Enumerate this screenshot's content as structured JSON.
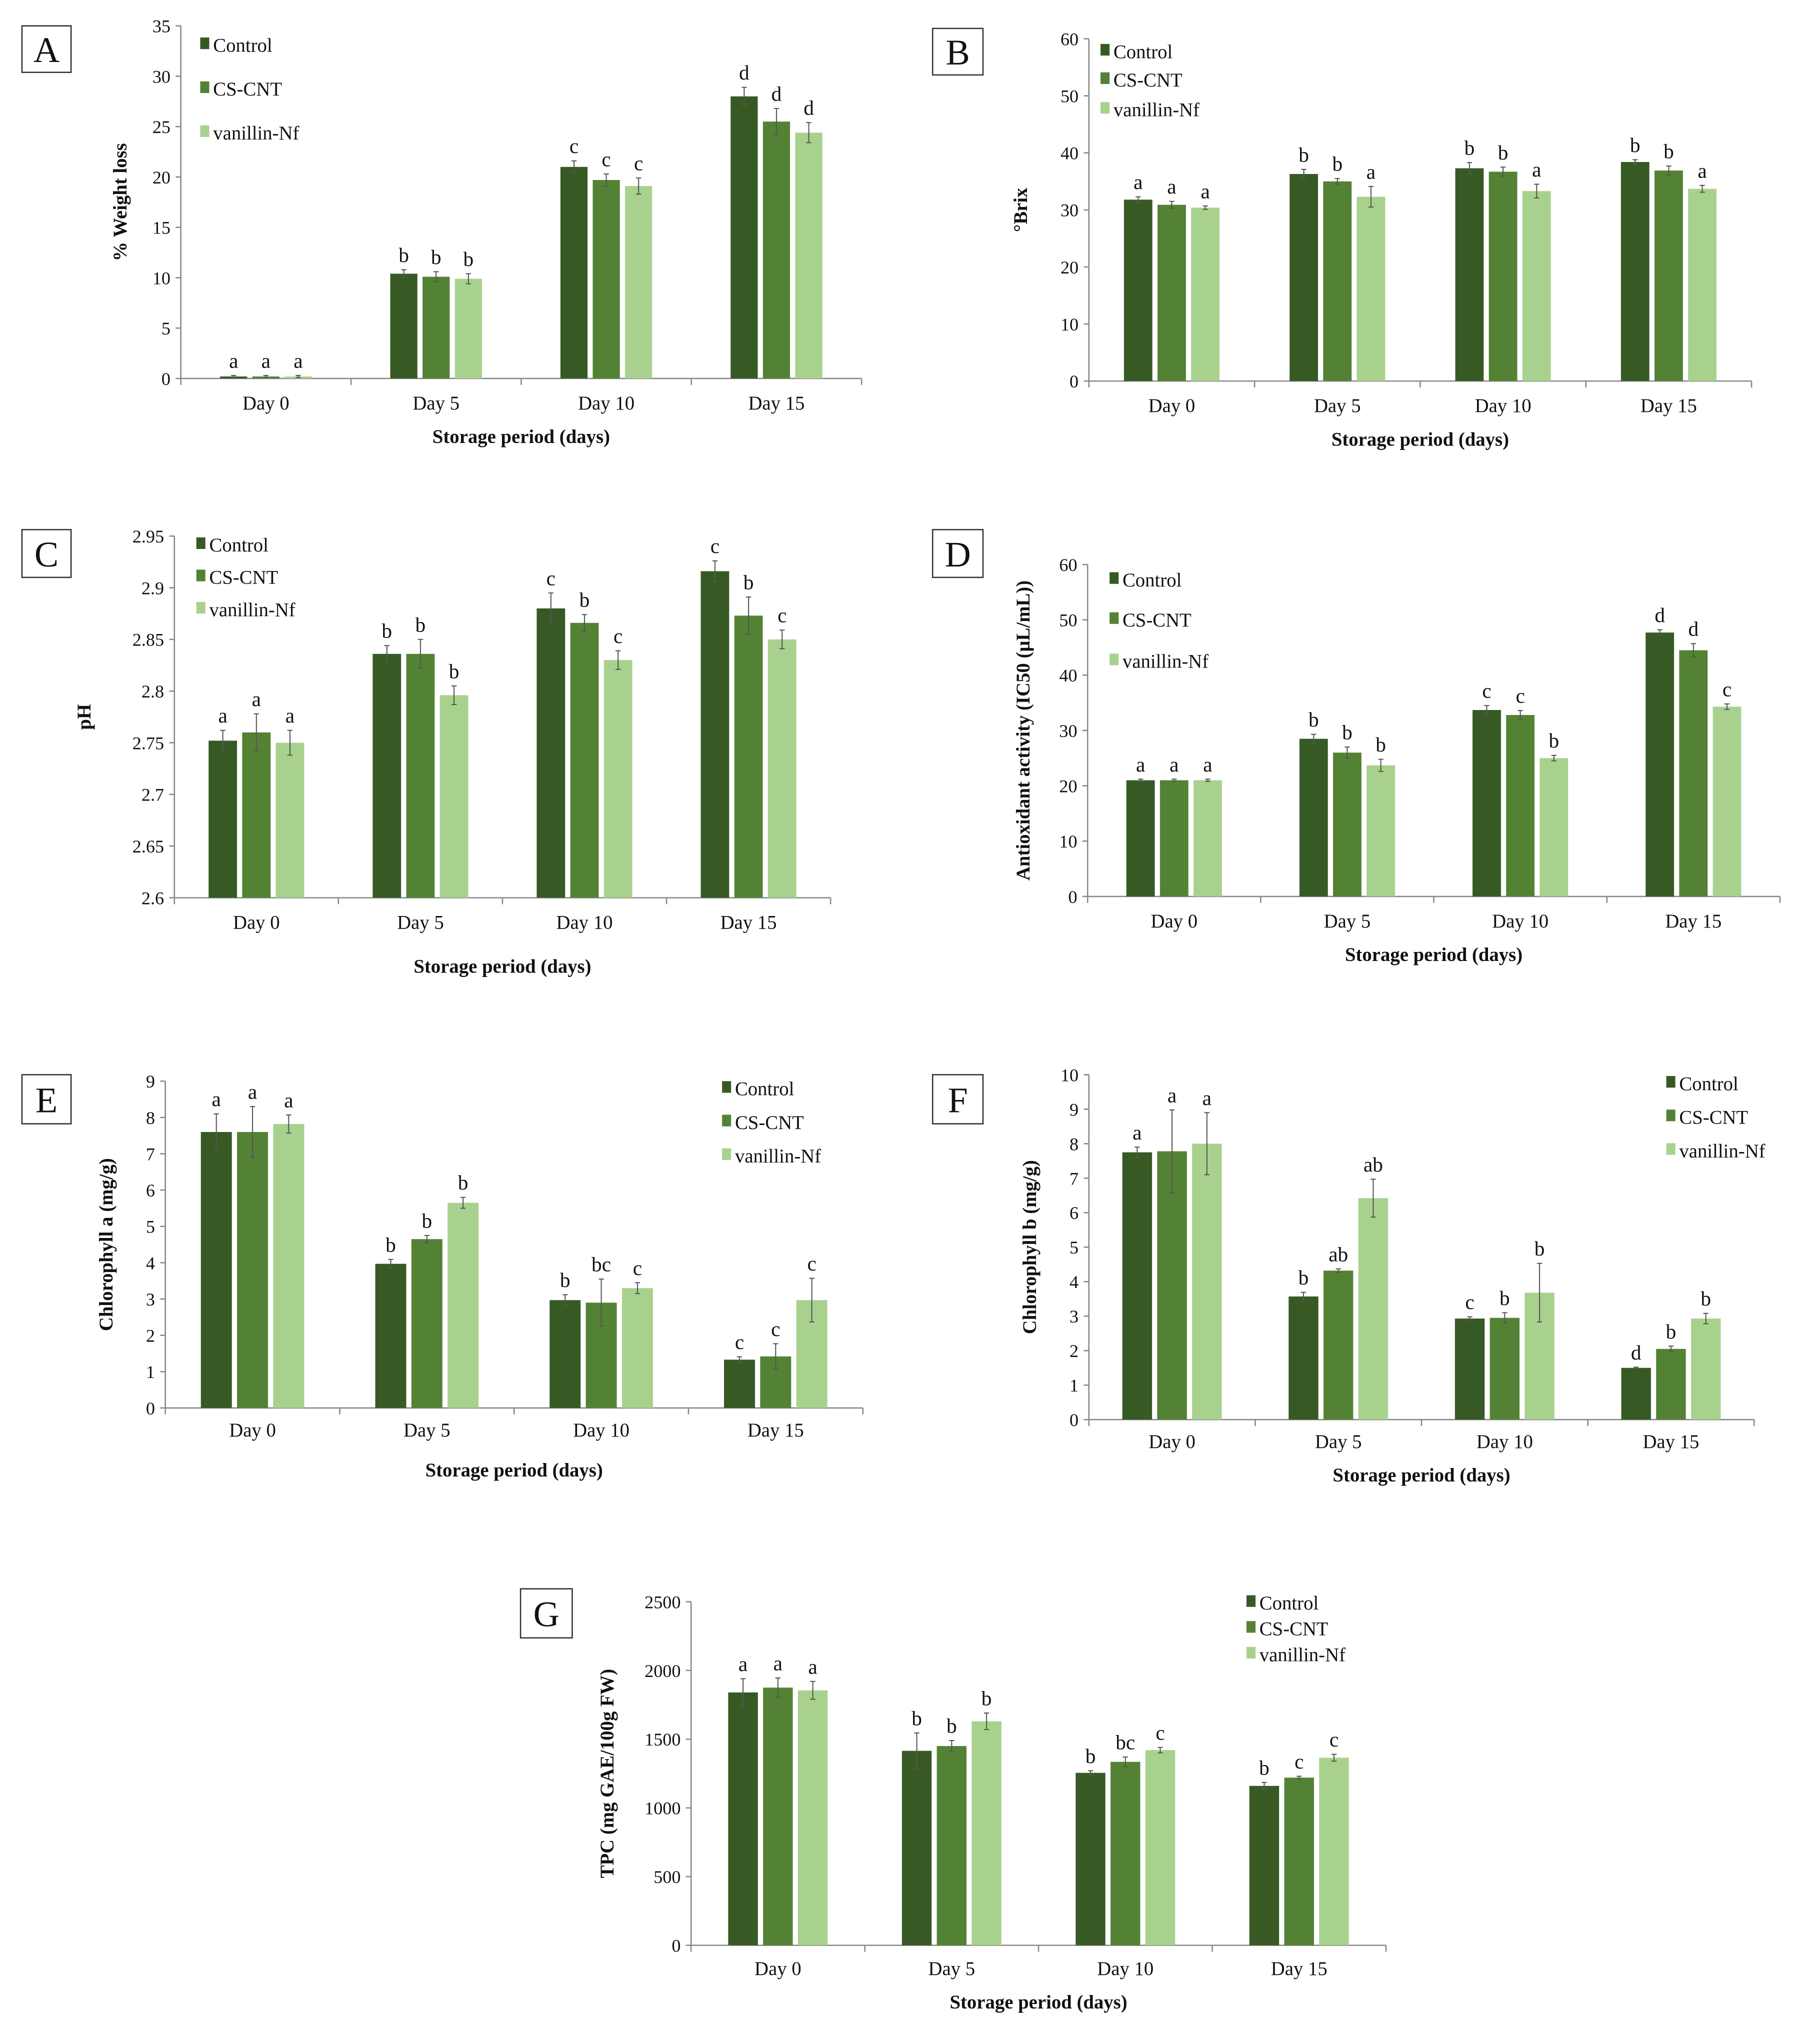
{
  "colors": {
    "Control": "#375a25",
    "CS-CNT": "#548235",
    "vanillin-Nf": "#a9d18e",
    "axis": "#888888",
    "errorbar": "#555555"
  },
  "chart_data": [
    {
      "panel": "A",
      "type": "bar",
      "ylabel": "% Weight loss",
      "xlabel": "Storage period (days)",
      "categories": [
        "Day 0",
        "Day 5",
        "Day 10",
        "Day 15"
      ],
      "ylim": [
        0,
        35
      ],
      "yticks": [
        "0",
        "5",
        "10",
        "15",
        "20",
        "25",
        "30",
        "35"
      ],
      "legend_position": "top-left",
      "series": [
        {
          "name": "Control",
          "values": [
            0.2,
            10.4,
            21.0,
            28.0
          ],
          "errors": [
            0.1,
            0.4,
            0.6,
            0.9
          ],
          "letters": [
            "a",
            "b",
            "c",
            "d"
          ]
        },
        {
          "name": "CS-CNT",
          "values": [
            0.2,
            10.1,
            19.7,
            25.5
          ],
          "errors": [
            0.1,
            0.5,
            0.6,
            1.3
          ],
          "letters": [
            "a",
            "b",
            "c",
            "d"
          ]
        },
        {
          "name": "vanillin-Nf",
          "values": [
            0.2,
            9.9,
            19.1,
            24.4
          ],
          "errors": [
            0.1,
            0.5,
            0.8,
            1.0
          ],
          "letters": [
            "a",
            "b",
            "c",
            "d"
          ]
        }
      ]
    },
    {
      "panel": "B",
      "type": "bar",
      "ylabel": "°Brix",
      "xlabel": "Storage period (days)",
      "categories": [
        "Day 0",
        "Day 5",
        "Day 10",
        "Day 15"
      ],
      "ylim": [
        0,
        60
      ],
      "yticks": [
        "0",
        "10",
        "20",
        "30",
        "40",
        "50",
        "60"
      ],
      "legend_position": "top-left",
      "series": [
        {
          "name": "Control",
          "values": [
            31.8,
            36.3,
            37.3,
            38.4
          ],
          "errors": [
            0.5,
            0.8,
            1.0,
            0.4
          ],
          "letters": [
            "a",
            "b",
            "b",
            "b"
          ]
        },
        {
          "name": "CS-CNT",
          "values": [
            30.9,
            35.0,
            36.7,
            36.9
          ],
          "errors": [
            0.6,
            0.5,
            0.8,
            0.8
          ],
          "letters": [
            "a",
            "b",
            "b",
            "b"
          ]
        },
        {
          "name": "vanillin-Nf",
          "values": [
            30.4,
            32.3,
            33.3,
            33.7
          ],
          "errors": [
            0.3,
            1.8,
            1.2,
            0.6
          ],
          "letters": [
            "a",
            "a",
            "a",
            "a"
          ]
        }
      ]
    },
    {
      "panel": "C",
      "type": "bar",
      "ylabel": "pH",
      "xlabel": "Storage period (days)",
      "categories": [
        "Day 0",
        "Day 5",
        "Day 10",
        "Day 15"
      ],
      "ylim": [
        2.6,
        2.95
      ],
      "yticks": [
        "2.6",
        "2.65",
        "2.7",
        "2.75",
        "2.8",
        "2.85",
        "2.9",
        "2.95"
      ],
      "legend_position": "top-left",
      "series": [
        {
          "name": "Control",
          "values": [
            2.752,
            2.836,
            2.88,
            2.916
          ],
          "errors": [
            0.01,
            0.008,
            0.015,
            0.01
          ],
          "letters": [
            "a",
            "b",
            "c",
            "c"
          ]
        },
        {
          "name": "CS-CNT",
          "values": [
            2.76,
            2.836,
            2.866,
            2.873
          ],
          "errors": [
            0.018,
            0.014,
            0.008,
            0.018
          ],
          "letters": [
            "a",
            "b",
            "b",
            "b"
          ]
        },
        {
          "name": "vanillin-Nf",
          "values": [
            2.75,
            2.796,
            2.83,
            2.85
          ],
          "errors": [
            0.012,
            0.009,
            0.009,
            0.009
          ],
          "letters": [
            "a",
            "b",
            "c",
            "c"
          ]
        }
      ]
    },
    {
      "panel": "D",
      "type": "bar",
      "ylabel": "Antioxidant activity (IC50 (µL/mL))",
      "xlabel": "Storage period (days)",
      "categories": [
        "Day 0",
        "Day 5",
        "Day 10",
        "Day 15"
      ],
      "ylim": [
        0,
        60
      ],
      "yticks": [
        "0",
        "10",
        "20",
        "30",
        "40",
        "50",
        "60"
      ],
      "legend_position": "top-left",
      "series": [
        {
          "name": "Control",
          "values": [
            21.0,
            28.5,
            33.7,
            47.7
          ],
          "errors": [
            0.2,
            0.8,
            0.8,
            0.5
          ],
          "letters": [
            "a",
            "b",
            "c",
            "d"
          ]
        },
        {
          "name": "CS-CNT",
          "values": [
            21.0,
            26.0,
            32.8,
            44.5
          ],
          "errors": [
            0.2,
            1.0,
            0.8,
            1.2
          ],
          "letters": [
            "a",
            "b",
            "c",
            "d"
          ]
        },
        {
          "name": "vanillin-Nf",
          "values": [
            21.0,
            23.7,
            25.0,
            34.3
          ],
          "errors": [
            0.2,
            1.1,
            0.5,
            0.5
          ],
          "letters": [
            "a",
            "b",
            "b",
            "c"
          ]
        }
      ]
    },
    {
      "panel": "E",
      "type": "bar",
      "ylabel": "Chlorophyll a (mg/g)",
      "xlabel": "Storage period (days)",
      "categories": [
        "Day 0",
        "Day 5",
        "Day 10",
        "Day 15"
      ],
      "ylim": [
        0,
        9
      ],
      "yticks": [
        "0",
        "1",
        "2",
        "3",
        "4",
        "5",
        "6",
        "7",
        "8",
        "9"
      ],
      "legend_position": "top-right",
      "series": [
        {
          "name": "Control",
          "values": [
            7.6,
            3.97,
            2.97,
            1.33
          ],
          "errors": [
            0.5,
            0.12,
            0.15,
            0.08
          ],
          "letters": [
            "a",
            "b",
            "b",
            "c"
          ]
        },
        {
          "name": "CS-CNT",
          "values": [
            7.6,
            4.65,
            2.9,
            1.42
          ],
          "errors": [
            0.7,
            0.1,
            0.65,
            0.35
          ],
          "letters": [
            "a",
            "b",
            "bc",
            "c"
          ]
        },
        {
          "name": "vanillin-Nf",
          "values": [
            7.82,
            5.65,
            3.3,
            2.97
          ],
          "errors": [
            0.25,
            0.15,
            0.15,
            0.6
          ],
          "letters": [
            "a",
            "b",
            "c",
            "c"
          ]
        }
      ]
    },
    {
      "panel": "F",
      "type": "bar",
      "ylabel": "Chlorophyll b (mg/g)",
      "xlabel": "Storage period (days)",
      "categories": [
        "Day 0",
        "Day 5",
        "Day 10",
        "Day 15"
      ],
      "ylim": [
        0,
        10
      ],
      "yticks": [
        "0",
        "1",
        "2",
        "3",
        "4",
        "5",
        "6",
        "7",
        "8",
        "9",
        "10"
      ],
      "legend_position": "top-right",
      "series": [
        {
          "name": "Control",
          "values": [
            7.75,
            3.57,
            2.93,
            1.5
          ],
          "errors": [
            0.15,
            0.12,
            0.05,
            0.02
          ],
          "letters": [
            "a",
            "b",
            "c",
            "d"
          ]
        },
        {
          "name": "CS-CNT",
          "values": [
            7.78,
            4.32,
            2.95,
            2.05
          ],
          "errors": [
            1.2,
            0.05,
            0.15,
            0.08
          ],
          "letters": [
            "a",
            "ab",
            "b",
            "b"
          ]
        },
        {
          "name": "vanillin-Nf",
          "values": [
            8.0,
            6.42,
            3.68,
            2.93
          ],
          "errors": [
            0.9,
            0.55,
            0.85,
            0.15
          ],
          "letters": [
            "a",
            "ab",
            "b",
            "b"
          ]
        }
      ]
    },
    {
      "panel": "G",
      "type": "bar",
      "ylabel": "TPC (mg GAE/100g FW)",
      "xlabel": "Storage period (days)",
      "categories": [
        "Day 0",
        "Day 5",
        "Day 10",
        "Day 15"
      ],
      "ylim": [
        0,
        2500
      ],
      "yticks": [
        "0",
        "500",
        "1000",
        "1500",
        "2000",
        "2500"
      ],
      "legend_position": "top-right",
      "series": [
        {
          "name": "Control",
          "values": [
            1840,
            1415,
            1255,
            1160
          ],
          "errors": [
            100,
            130,
            15,
            25
          ],
          "letters": [
            "a",
            "b",
            "b",
            "b"
          ]
        },
        {
          "name": "CS-CNT",
          "values": [
            1875,
            1450,
            1335,
            1220
          ],
          "errors": [
            70,
            40,
            35,
            10
          ],
          "letters": [
            "a",
            "b",
            "bc",
            "c"
          ]
        },
        {
          "name": "vanillin-Nf",
          "values": [
            1855,
            1630,
            1420,
            1365
          ],
          "errors": [
            65,
            60,
            20,
            25
          ],
          "letters": [
            "a",
            "b",
            "c",
            "c"
          ]
        }
      ]
    }
  ]
}
